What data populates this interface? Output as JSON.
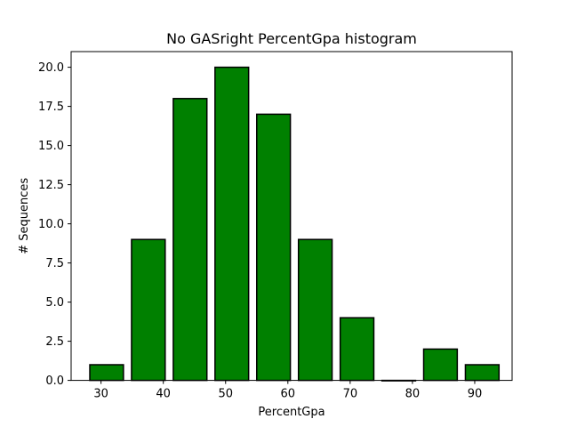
{
  "chart_data": {
    "type": "bar",
    "title": "No GASright PercentGpa histogram",
    "xlabel": "PercentGpa",
    "ylabel": "# Sequences",
    "bin_centers": [
      30.9,
      37.6,
      44.3,
      51.0,
      57.7,
      64.4,
      71.1,
      77.8,
      84.5,
      91.2
    ],
    "values": [
      1,
      9,
      18,
      20,
      17,
      9,
      4,
      0,
      2,
      1
    ],
    "bar_width": 5.4,
    "xlim": [
      25.2,
      96.0
    ],
    "ylim": [
      0,
      21
    ],
    "xticks": [
      30,
      40,
      50,
      60,
      70,
      80,
      90
    ],
    "xtick_labels": [
      "30",
      "40",
      "50",
      "60",
      "70",
      "80",
      "90"
    ],
    "yticks": [
      0,
      2.5,
      5,
      7.5,
      10,
      12.5,
      15,
      17.5,
      20
    ],
    "ytick_labels": [
      "0.0",
      "2.5",
      "5.0",
      "7.5",
      "10.0",
      "12.5",
      "15.0",
      "17.5",
      "20.0"
    ],
    "bar_color": "#008000",
    "edge_color": "#000000",
    "grid": false
  }
}
